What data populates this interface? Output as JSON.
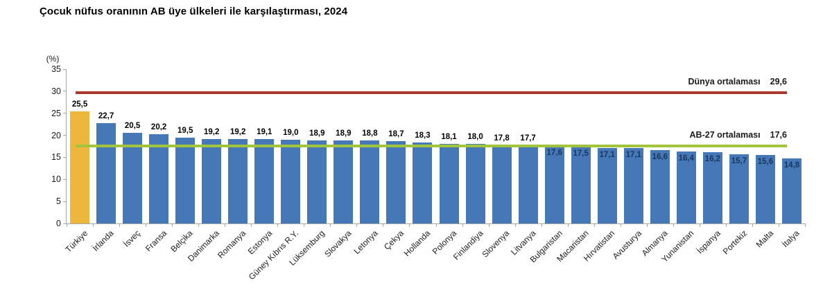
{
  "title": "Çocuk nüfus oranının AB üye ülkeleri ile karşılaştırması, 2024",
  "chart_data": {
    "type": "bar",
    "title": "Çocuk nüfus oranının AB üye ülkeleri ile karşılaştırması, 2024",
    "unit_label": "(%)",
    "ylim": [
      0,
      35
    ],
    "yticks": [
      0,
      5,
      10,
      15,
      20,
      25,
      30,
      35
    ],
    "grid": false,
    "legend": "none",
    "categories": [
      "Türkiye",
      "İrlanda",
      "İsveç",
      "Fransa",
      "Belçika",
      "Danimarka",
      "Romanya",
      "Estonya",
      "Güney Kıbrıs R.Y.",
      "Lüksemburg",
      "Slovakya",
      "Letonya",
      "Çekya",
      "Hollanda",
      "Polonya",
      "Finlandiya",
      "Slovenya",
      "Litvanya",
      "Bulgaristan",
      "Macaristan",
      "Hırvatistan",
      "Avusturya",
      "Almanya",
      "Yunanistan",
      "İspanya",
      "Portekiz",
      "Malta",
      "İtalya"
    ],
    "values": [
      25.5,
      22.7,
      20.5,
      20.2,
      19.5,
      19.2,
      19.2,
      19.1,
      19.0,
      18.9,
      18.9,
      18.8,
      18.7,
      18.3,
      18.1,
      18.0,
      17.8,
      17.7,
      17.6,
      17.5,
      17.1,
      17.1,
      16.6,
      16.4,
      16.2,
      15.7,
      15.6,
      14.8
    ],
    "value_labels": [
      "25,5",
      "22,7",
      "20,5",
      "20,2",
      "19,5",
      "19,2",
      "19,2",
      "19,1",
      "19,0",
      "18,9",
      "18,9",
      "18,8",
      "18,7",
      "18,3",
      "18,1",
      "18,0",
      "17,8",
      "17,7",
      "17,6",
      "17,5",
      "17,1",
      "17,1",
      "16,6",
      "16,4",
      "16,2",
      "15,7",
      "15,6",
      "14,8"
    ],
    "highlight_index": 0,
    "reference_lines": [
      {
        "name": "Dünya ortalaması",
        "value": 29.6,
        "value_label": "29,6",
        "color": "#ac3a31"
      },
      {
        "name": "AB-27 ortalaması",
        "value": 17.6,
        "value_label": "17,6",
        "color": "#a2c33c"
      }
    ],
    "colors": {
      "bar": "#4678b8",
      "highlight_bar": "#edb73e",
      "inside_value_label": "#17375e",
      "outside_value_label": "#000000",
      "axis": "#a6a6a6"
    }
  }
}
